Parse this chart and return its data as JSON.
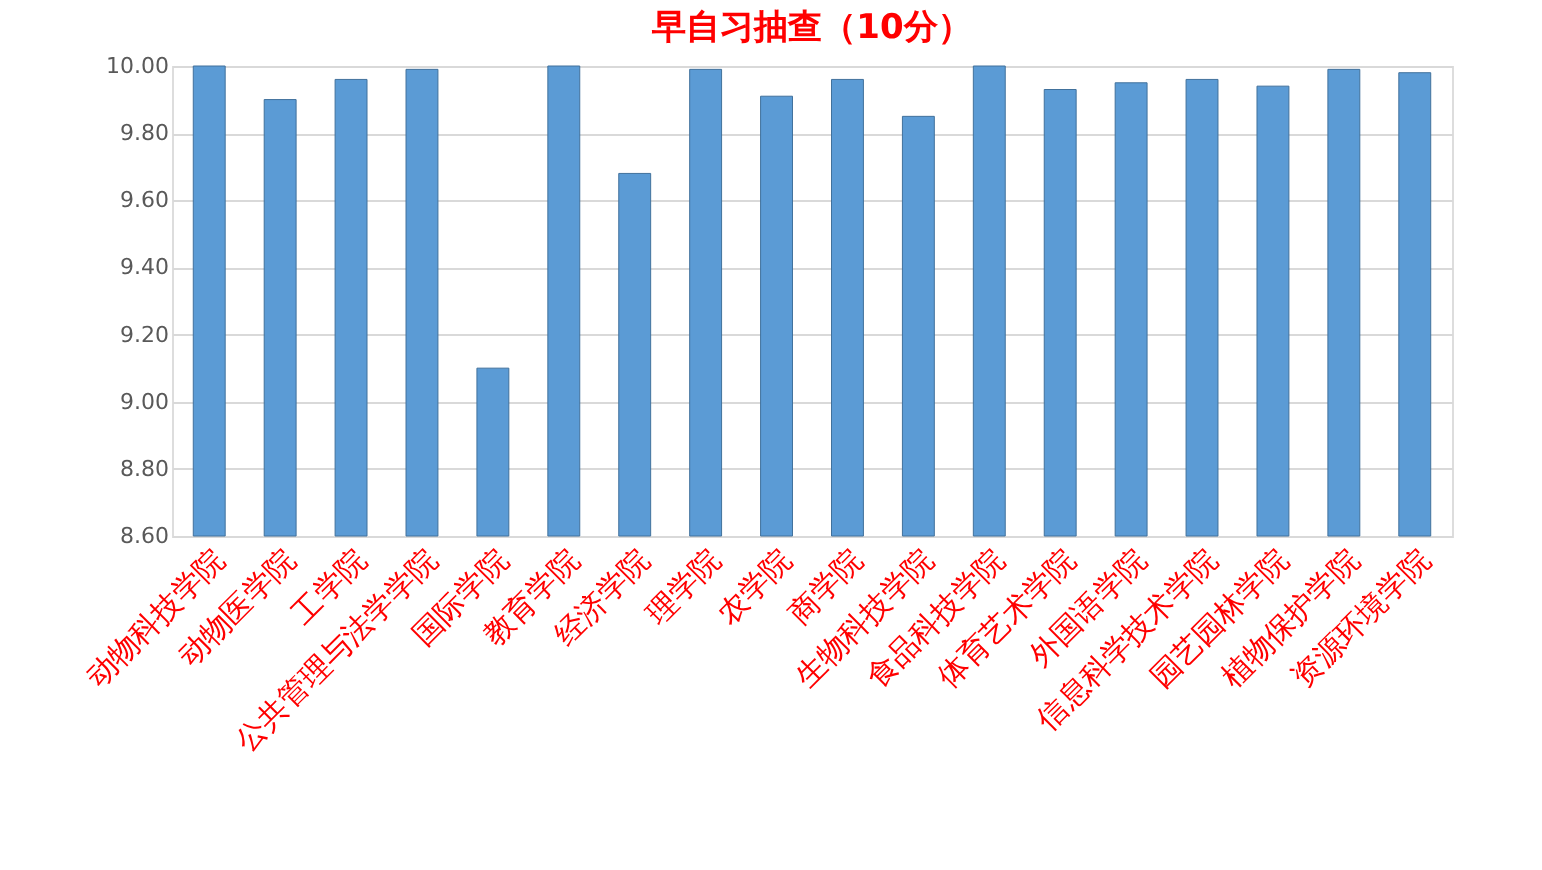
{
  "chart_data": {
    "type": "bar",
    "title": "早自习抽查（10分）",
    "categories": [
      "动物科技学院",
      "动物医学院",
      "工学院",
      "公共管理与法学学院",
      "国际学院",
      "教育学院",
      "经济学院",
      "理学院",
      "农学院",
      "商学院",
      "生物科技学院",
      "食品科技学院",
      "体育艺术学院",
      "外国语学院",
      "信息科学技术学院",
      "园艺园林学院",
      "植物保护学院",
      "资源环境学院"
    ],
    "values": [
      10.0,
      9.9,
      9.96,
      9.99,
      9.1,
      10.0,
      9.68,
      9.99,
      9.91,
      9.96,
      9.85,
      10.0,
      9.93,
      9.95,
      9.96,
      9.94,
      9.99,
      9.98
    ],
    "color": "#5b9bd5",
    "ylim": [
      8.6,
      10.0
    ],
    "yticks": [
      {
        "value": 8.6,
        "label": "8.60"
      },
      {
        "value": 8.8,
        "label": "8.80"
      },
      {
        "value": 9.0,
        "label": "9.00"
      },
      {
        "value": 9.2,
        "label": "9.20"
      },
      {
        "value": 9.4,
        "label": "9.40"
      },
      {
        "value": 9.6,
        "label": "9.60"
      },
      {
        "value": 9.8,
        "label": "9.80"
      },
      {
        "value": 10.0,
        "label": "10.00"
      }
    ],
    "grid": "y"
  }
}
